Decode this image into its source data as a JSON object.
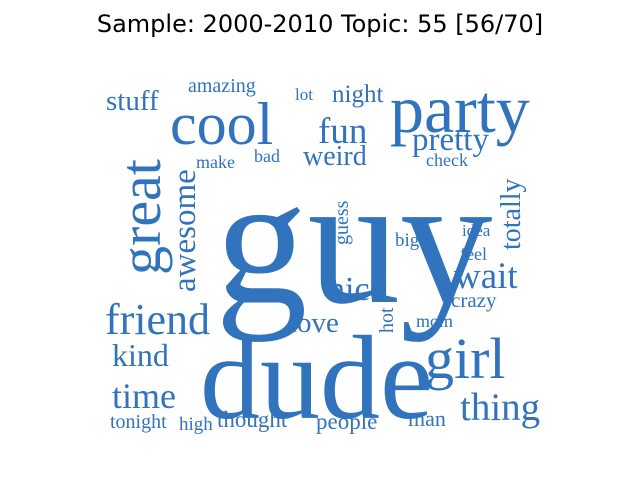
{
  "title": "Sample: 2000-2010 Topic: 55 [56/70]",
  "color": "#3173bc",
  "words": [
    "guy",
    "dude",
    "party",
    "cool",
    "girl",
    "great",
    "friend",
    "awesome",
    "fun",
    "wait",
    "thing",
    "pretty",
    "nice",
    "time",
    "stuff",
    "weird",
    "totally",
    "love",
    "kind",
    "night",
    "amazing",
    "tonight",
    "thought",
    "people",
    "man",
    "crazy",
    "high",
    "guess",
    "hot",
    "big",
    "mom",
    "feel",
    "idea",
    "make",
    "bad",
    "check",
    "lot"
  ]
}
